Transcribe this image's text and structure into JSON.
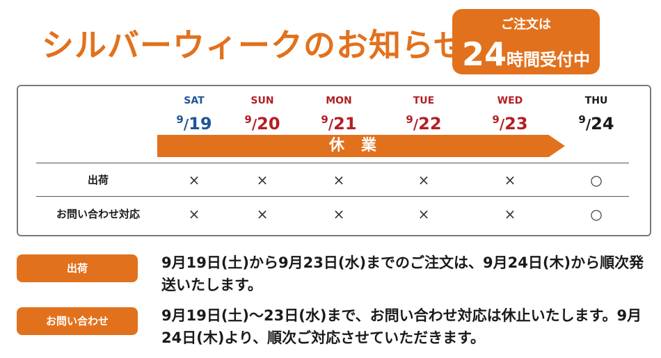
{
  "title": "シルバーウィークのお知らせ",
  "badge": {
    "line1": "ご注文は",
    "number": "24",
    "unit": "時間受付中"
  },
  "schedule": {
    "days": [
      {
        "dow": "SAT",
        "month": "9",
        "day": "19",
        "color": "#1f5597"
      },
      {
        "dow": "SUN",
        "month": "9",
        "day": "20",
        "color": "#b21f24"
      },
      {
        "dow": "MON",
        "month": "9",
        "day": "21",
        "color": "#b21f24"
      },
      {
        "dow": "TUE",
        "month": "9",
        "day": "22",
        "color": "#b21f24"
      },
      {
        "dow": "WED",
        "month": "9",
        "day": "23",
        "color": "#b21f24"
      },
      {
        "dow": "THU",
        "month": "9",
        "day": "24",
        "color": "#1a1a1a"
      }
    ],
    "holiday_label": "休業",
    "rows": [
      {
        "label": "出荷",
        "marks": [
          "×",
          "×",
          "×",
          "×",
          "×",
          "○"
        ]
      },
      {
        "label": "お問い合わせ対応",
        "marks": [
          "×",
          "×",
          "×",
          "×",
          "×",
          "○"
        ]
      }
    ]
  },
  "notices": [
    {
      "label": "出荷",
      "text": "9月19日(土)から9月23日(水)までのご注文は、9月24日(木)から順次発送いたします。"
    },
    {
      "label": "お問い合わせ",
      "text": "9月19日(土)～23日(水)まで、お問い合わせ対応は休止いたします。9月24日(木)より、順次ご対応させていただきます。"
    }
  ],
  "colors": {
    "accent": "#e2711d",
    "saturday": "#1f5597",
    "holiday": "#b21f24"
  }
}
